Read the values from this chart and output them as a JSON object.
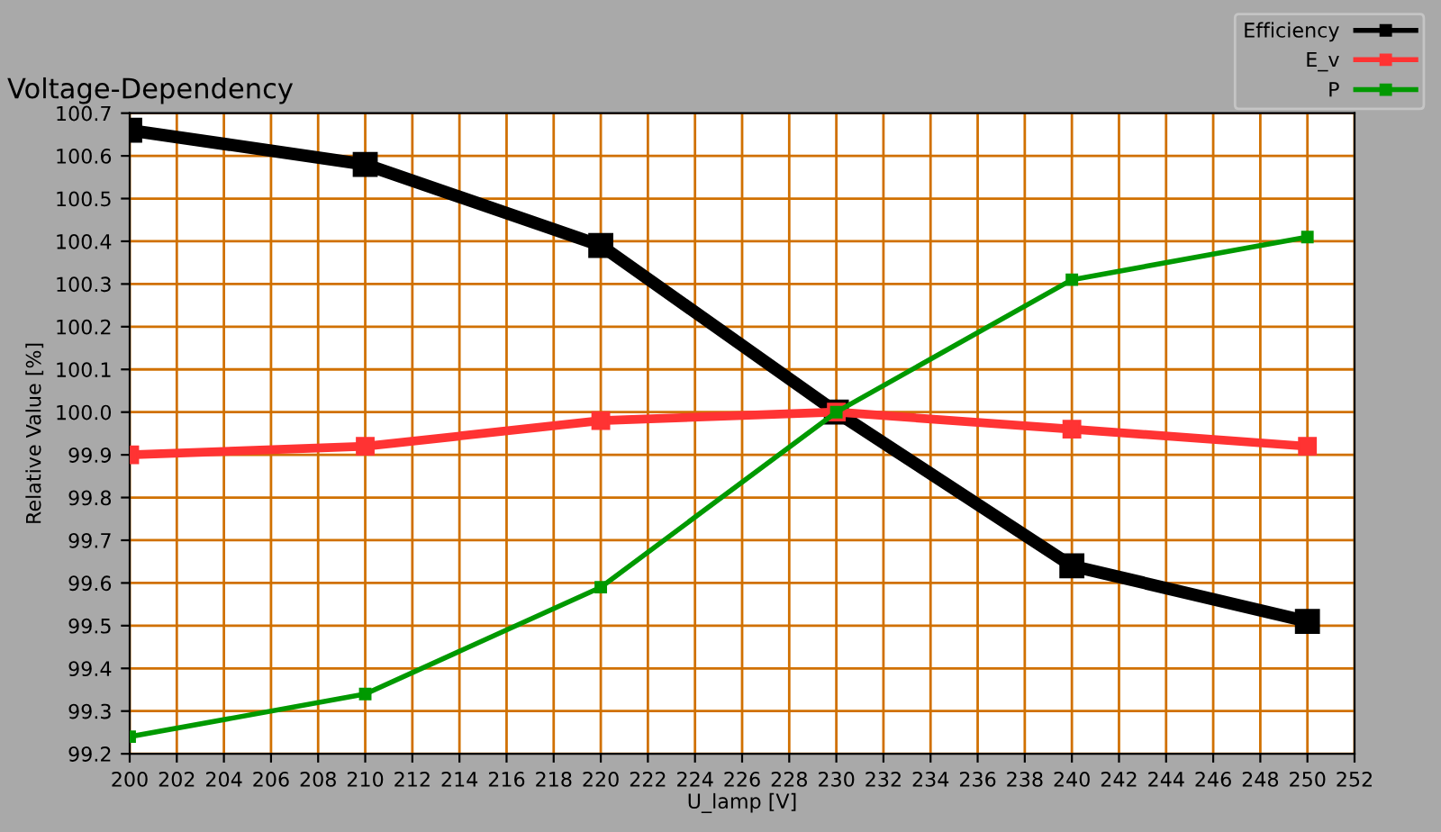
{
  "chart_data": {
    "type": "line",
    "title": "Voltage-Dependency",
    "xlabel": "U_lamp [V]",
    "ylabel": "Relative Value [%]",
    "x": [
      200,
      210,
      220,
      230,
      240,
      250
    ],
    "series": [
      {
        "name": "Efficiency",
        "color": "#000000",
        "values": [
          100.66,
          100.58,
          100.39,
          100.0,
          99.64,
          99.51
        ]
      },
      {
        "name": "E_v",
        "color": "#ff3333",
        "values": [
          99.9,
          99.92,
          99.98,
          100.0,
          99.96,
          99.92
        ]
      },
      {
        "name": "P",
        "color": "#009900",
        "values": [
          99.24,
          99.34,
          99.59,
          100.0,
          100.31,
          100.41
        ]
      }
    ],
    "xlim": [
      200,
      252
    ],
    "xticks": [
      200,
      202,
      204,
      206,
      208,
      210,
      212,
      214,
      216,
      218,
      220,
      222,
      224,
      226,
      228,
      230,
      232,
      234,
      236,
      238,
      240,
      242,
      244,
      246,
      248,
      250,
      252
    ],
    "ylim": [
      99.2,
      100.7
    ],
    "yticks": [
      99.2,
      99.3,
      99.4,
      99.5,
      99.6,
      99.7,
      99.8,
      99.9,
      {
        "value": 100,
        "label": "100.0"
      },
      100.1,
      100.2,
      100.3,
      100.4,
      100.5,
      100.6,
      100.7
    ],
    "grid": true,
    "legend": "top right",
    "marker": "square",
    "line_style": "solid"
  }
}
